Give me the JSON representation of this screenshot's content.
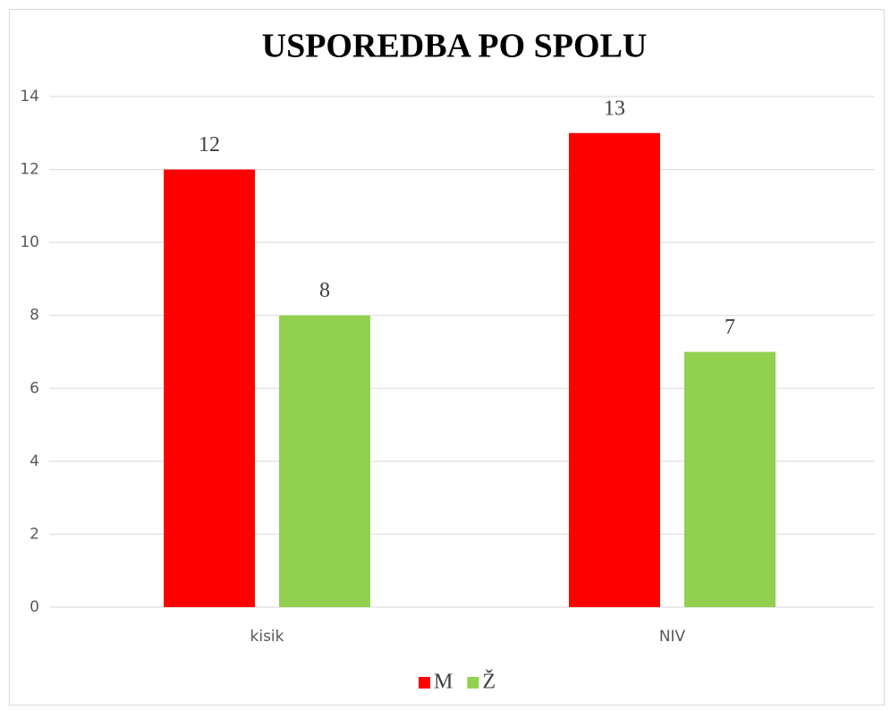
{
  "chart_data": {
    "type": "bar",
    "title": "USPOREDBA PO SPOLU",
    "categories": [
      "kisik",
      "NIV"
    ],
    "series": [
      {
        "name": "M",
        "color": "#ff0000",
        "values": [
          12,
          13
        ]
      },
      {
        "name": "Ž",
        "color": "#92d050",
        "values": [
          8,
          7
        ]
      }
    ],
    "ylim": [
      0,
      14
    ],
    "yticks": [
      0,
      2,
      4,
      6,
      8,
      10,
      12,
      14
    ],
    "grid": true,
    "legend": "bottom",
    "data_labels": true
  }
}
